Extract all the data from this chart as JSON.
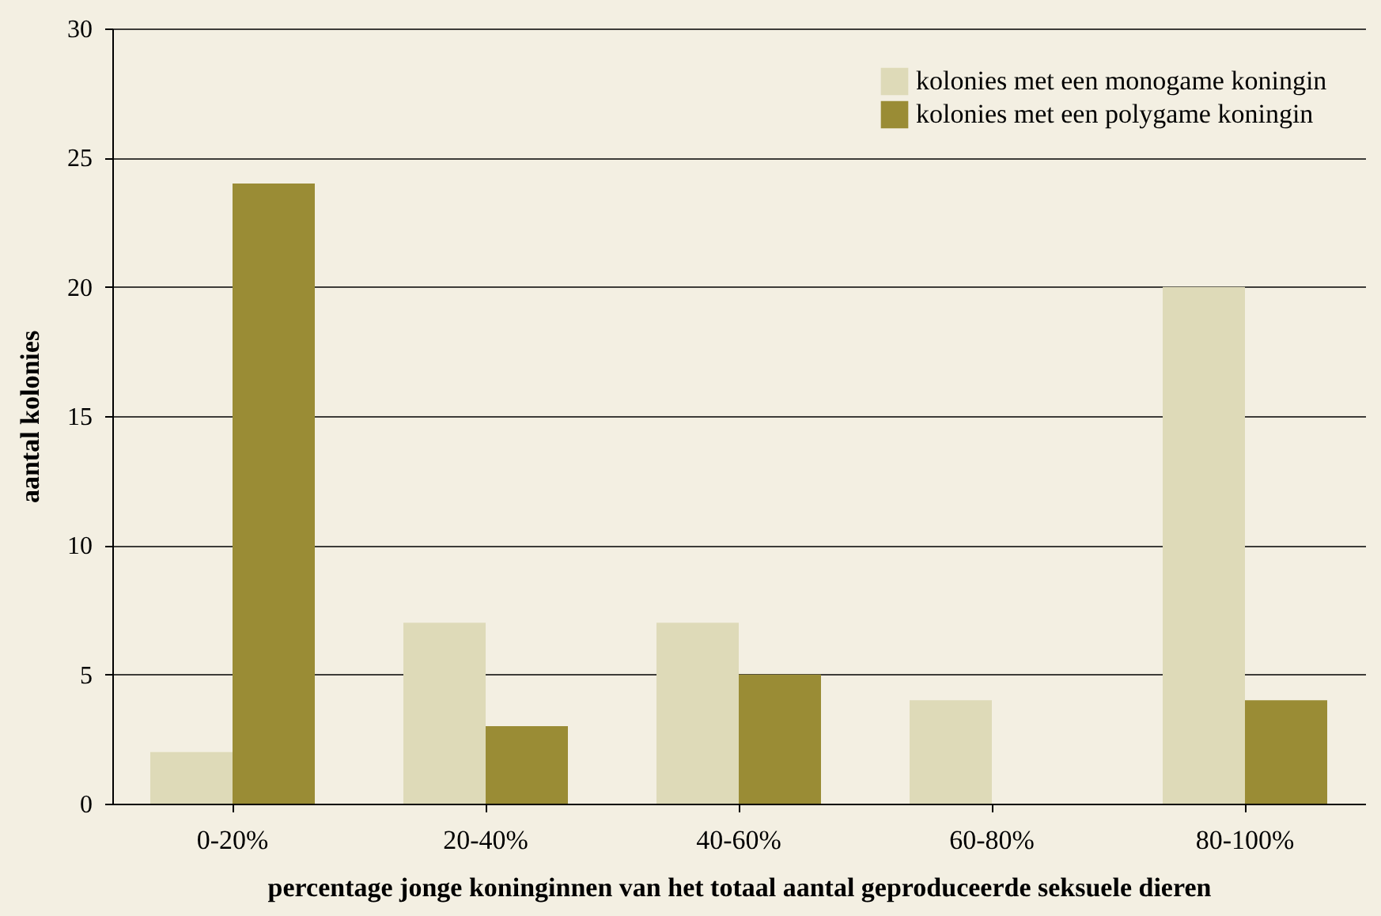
{
  "chart_data": {
    "type": "bar",
    "xlabel": "percentage jonge koninginnen van het totaal aantal geproduceerde seksuele dieren",
    "ylabel": "aantal kolonies",
    "categories": [
      "0-20%",
      "20-40%",
      "40-60%",
      "60-80%",
      "80-100%"
    ],
    "series": [
      {
        "name": "kolonies met een monogame koningin",
        "color": "#dedab8",
        "values": [
          2,
          7,
          7,
          4,
          20
        ]
      },
      {
        "name": "kolonies met een polygame koningin",
        "color": "#9a8c35",
        "values": [
          24,
          3,
          5,
          0,
          4
        ]
      }
    ],
    "ylim": [
      0,
      30
    ],
    "yticks": [
      0,
      5,
      10,
      15,
      20,
      25,
      30
    ],
    "grid": "y",
    "legend": "top right"
  }
}
